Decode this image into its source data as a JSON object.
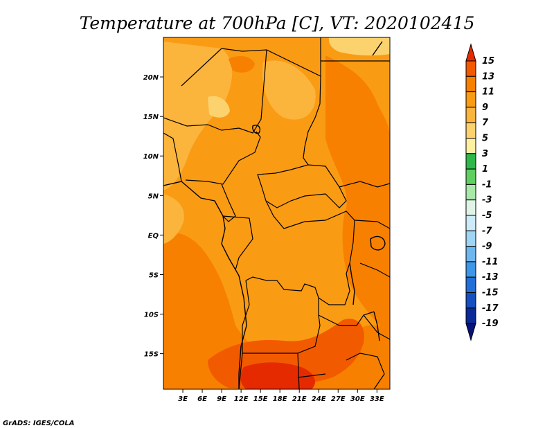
{
  "chart_data": {
    "type": "heatmap",
    "title": "Temperature at 700hPa [C], VT: 2020102415",
    "x_ticks": [
      "3E",
      "6E",
      "9E",
      "12E",
      "15E",
      "18E",
      "21E",
      "24E",
      "27E",
      "30E",
      "33E"
    ],
    "y_ticks": [
      "20N",
      "15N",
      "10N",
      "5N",
      "EQ",
      "5S",
      "10S",
      "15S"
    ],
    "xlim": [
      0,
      35
    ],
    "ylim": [
      -19.5,
      25
    ],
    "colorbar": {
      "levels": [
        "15",
        "13",
        "11",
        "9",
        "7",
        "5",
        "3",
        "1",
        "-1",
        "-3",
        "-5",
        "-7",
        "-9",
        "-11",
        "-13",
        "-15",
        "-17",
        "-19"
      ],
      "colors": [
        "#e52a00",
        "#f25a00",
        "#f88000",
        "#fa9b14",
        "#fbb43c",
        "#fcd26e",
        "#fef0a0",
        "#2eb84a",
        "#5fd060",
        "#a8e8a8",
        "#dff4e6",
        "#cceaf8",
        "#9fd4f2",
        "#6eb6ee",
        "#3e96e6",
        "#2070d8",
        "#1450c0",
        "#0a2a98",
        "#08127a"
      ]
    },
    "credit": "GrADS: IGES/COLA"
  }
}
